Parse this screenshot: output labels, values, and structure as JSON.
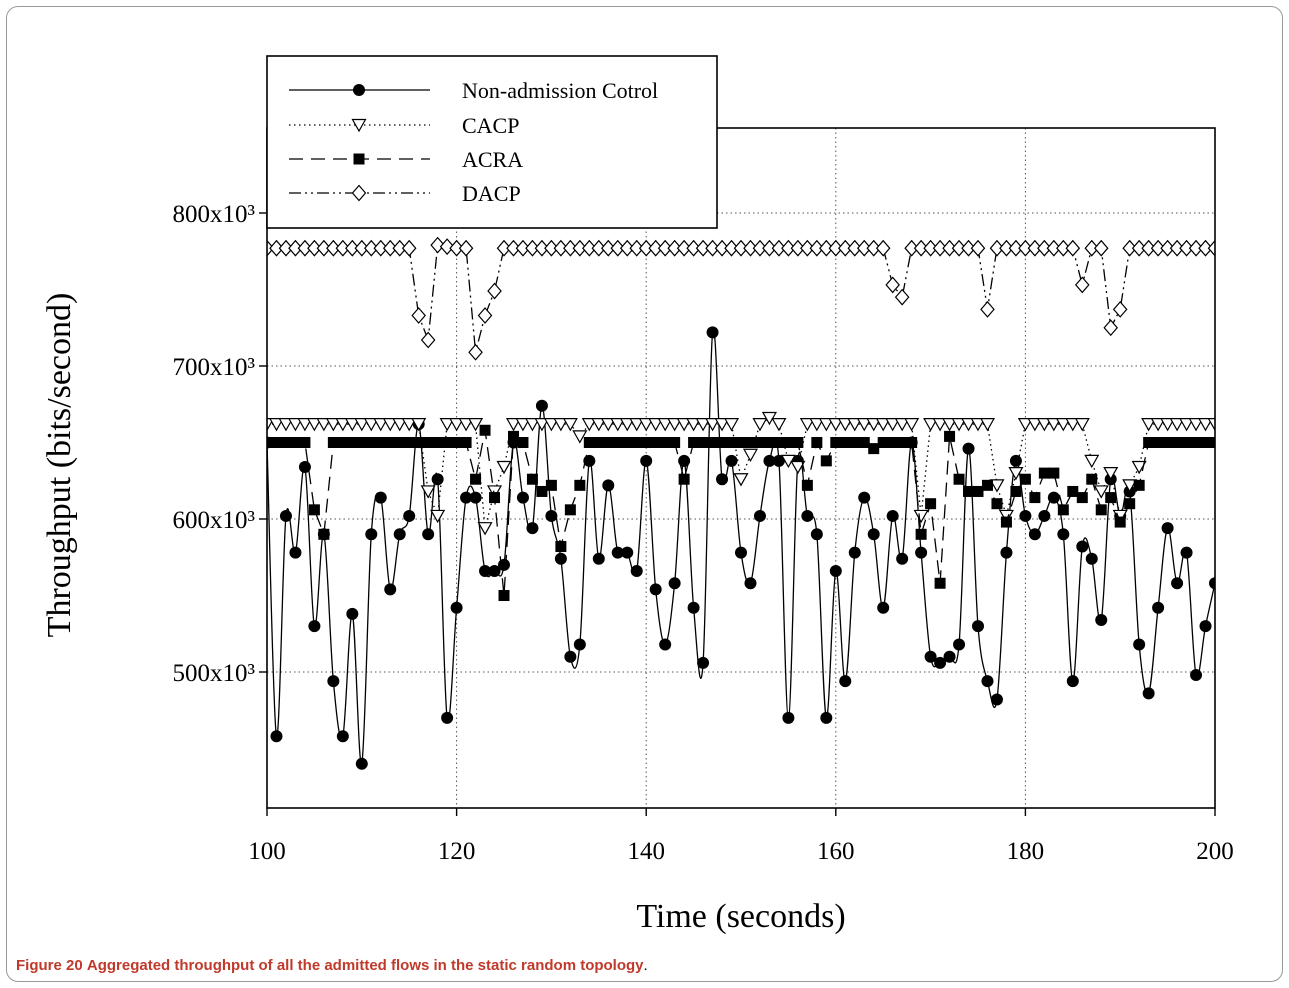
{
  "caption": {
    "label": "Figure 20",
    "text": "Aggregated throughput of all the admitted flows in the static random topology",
    "end": "."
  },
  "chart_data": {
    "type": "line",
    "title": "",
    "xlabel": "Time (seconds)",
    "ylabel": "Throughput (bits/second)",
    "xlim": [
      100,
      200
    ],
    "ylim": [
      450000,
      850000
    ],
    "x_ticks": [
      100,
      120,
      140,
      160,
      180,
      200
    ],
    "y_ticks": [
      500000,
      600000,
      700000,
      800000
    ],
    "y_tick_labels": [
      "500x10³",
      "600x10³",
      "700x10³",
      "800x10³"
    ],
    "grid": true,
    "legend_position": "top-left",
    "x": [
      100,
      101,
      102,
      103,
      104,
      105,
      106,
      107,
      108,
      109,
      110,
      111,
      112,
      113,
      114,
      115,
      116,
      117,
      118,
      119,
      120,
      121,
      122,
      123,
      124,
      125,
      126,
      127,
      128,
      129,
      130,
      131,
      132,
      133,
      134,
      135,
      136,
      137,
      138,
      139,
      140,
      141,
      142,
      143,
      144,
      145,
      146,
      147,
      148,
      149,
      150,
      151,
      152,
      153,
      154,
      155,
      156,
      157,
      158,
      159,
      160,
      161,
      162,
      163,
      164,
      165,
      166,
      167,
      168,
      169,
      170,
      171,
      172,
      173,
      174,
      175,
      176,
      177,
      178,
      179,
      180,
      181,
      182,
      183,
      184,
      185,
      186,
      187,
      188,
      189,
      190,
      191,
      192,
      193,
      194,
      195,
      196,
      197,
      198,
      199,
      200
    ],
    "series": [
      {
        "name": "Non-admission Cotrol",
        "marker": "filled-circle",
        "linestyle": "solid",
        "values": [
          650000,
          458000,
          602000,
          578000,
          634000,
          530000,
          590000,
          494000,
          458000,
          538000,
          440000,
          590000,
          614000,
          554000,
          590000,
          602000,
          662000,
          590000,
          626000,
          470000,
          542000,
          614000,
          614000,
          566000,
          566000,
          570000,
          650000,
          614000,
          594000,
          674000,
          602000,
          574000,
          510000,
          518000,
          638000,
          574000,
          622000,
          578000,
          578000,
          566000,
          638000,
          554000,
          518000,
          558000,
          638000,
          542000,
          506000,
          722000,
          626000,
          638000,
          578000,
          558000,
          602000,
          638000,
          638000,
          470000,
          638000,
          602000,
          590000,
          470000,
          566000,
          494000,
          578000,
          614000,
          590000,
          542000,
          602000,
          574000,
          650000,
          578000,
          510000,
          506000,
          510000,
          518000,
          646000,
          530000,
          494000,
          482000,
          578000,
          638000,
          602000,
          590000,
          602000,
          614000,
          590000,
          494000,
          582000,
          574000,
          534000,
          626000,
          602000,
          618000,
          518000,
          486000,
          542000,
          594000,
          558000,
          578000,
          498000,
          530000,
          558000
        ]
      },
      {
        "name": "CACP",
        "marker": "open-triangle-down",
        "linestyle": "dotted",
        "values": [
          662000,
          662000,
          662000,
          662000,
          662000,
          662000,
          662000,
          662000,
          662000,
          662000,
          662000,
          662000,
          662000,
          662000,
          662000,
          662000,
          662000,
          618000,
          602000,
          662000,
          662000,
          662000,
          662000,
          594000,
          618000,
          634000,
          662000,
          662000,
          662000,
          662000,
          662000,
          662000,
          662000,
          654000,
          662000,
          662000,
          662000,
          662000,
          662000,
          662000,
          662000,
          662000,
          662000,
          662000,
          662000,
          662000,
          662000,
          662000,
          662000,
          662000,
          626000,
          642000,
          662000,
          666000,
          662000,
          638000,
          634000,
          662000,
          662000,
          662000,
          662000,
          662000,
          662000,
          662000,
          662000,
          662000,
          662000,
          662000,
          662000,
          602000,
          662000,
          662000,
          662000,
          662000,
          662000,
          662000,
          662000,
          622000,
          602000,
          630000,
          662000,
          662000,
          662000,
          662000,
          662000,
          662000,
          662000,
          638000,
          618000,
          630000,
          602000,
          622000,
          634000,
          662000,
          662000,
          662000,
          662000,
          662000,
          662000,
          662000,
          662000
        ]
      },
      {
        "name": "ACRA",
        "marker": "filled-square",
        "linestyle": "dashed",
        "values": [
          650000,
          650000,
          650000,
          650000,
          650000,
          606000,
          590000,
          650000,
          650000,
          650000,
          650000,
          650000,
          650000,
          650000,
          650000,
          650000,
          650000,
          650000,
          650000,
          650000,
          650000,
          650000,
          626000,
          658000,
          614000,
          550000,
          654000,
          650000,
          626000,
          618000,
          622000,
          582000,
          606000,
          622000,
          650000,
          650000,
          650000,
          650000,
          650000,
          650000,
          650000,
          650000,
          650000,
          650000,
          626000,
          650000,
          650000,
          650000,
          650000,
          650000,
          650000,
          650000,
          650000,
          650000,
          650000,
          650000,
          650000,
          622000,
          650000,
          638000,
          650000,
          650000,
          650000,
          650000,
          646000,
          650000,
          650000,
          650000,
          650000,
          590000,
          610000,
          558000,
          654000,
          626000,
          618000,
          618000,
          622000,
          610000,
          598000,
          618000,
          626000,
          614000,
          630000,
          630000,
          606000,
          618000,
          614000,
          626000,
          606000,
          614000,
          598000,
          610000,
          622000,
          650000,
          650000,
          650000,
          650000,
          650000,
          650000,
          650000,
          650000
        ]
      },
      {
        "name": "DACP",
        "marker": "open-diamond",
        "linestyle": "dash-dot-dot",
        "values": [
          777000,
          777000,
          777000,
          777000,
          777000,
          777000,
          777000,
          777000,
          777000,
          777000,
          777000,
          777000,
          777000,
          777000,
          777000,
          777000,
          733000,
          717000,
          779000,
          778000,
          777000,
          777000,
          709000,
          733000,
          749000,
          777000,
          777000,
          777000,
          777000,
          777000,
          777000,
          777000,
          777000,
          777000,
          777000,
          777000,
          777000,
          777000,
          777000,
          777000,
          777000,
          777000,
          777000,
          777000,
          777000,
          777000,
          777000,
          777000,
          777000,
          777000,
          777000,
          777000,
          777000,
          777000,
          777000,
          777000,
          777000,
          777000,
          777000,
          777000,
          777000,
          777000,
          777000,
          777000,
          777000,
          777000,
          753000,
          745000,
          777000,
          777000,
          777000,
          777000,
          777000,
          777000,
          777000,
          777000,
          737000,
          777000,
          777000,
          777000,
          777000,
          777000,
          777000,
          777000,
          777000,
          777000,
          753000,
          777000,
          777000,
          725000,
          737000,
          777000,
          777000,
          777000,
          777000,
          777000,
          777000,
          777000,
          777000,
          777000,
          777000
        ]
      }
    ]
  }
}
